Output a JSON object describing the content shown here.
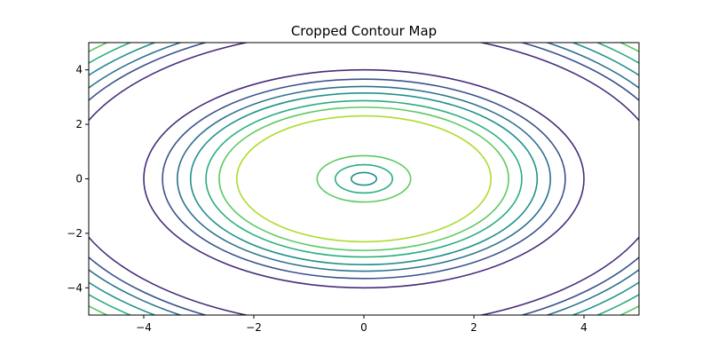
{
  "chart_data": {
    "type": "contour",
    "title": "Cropped Contour Map",
    "xlim": [
      -5,
      5
    ],
    "ylim": [
      -5,
      5
    ],
    "xticks": [
      {
        "value": -4,
        "label": "−4"
      },
      {
        "value": -2,
        "label": "−2"
      },
      0,
      2,
      4
    ],
    "yticks": [
      {
        "value": -4,
        "label": "−4"
      },
      {
        "value": -2,
        "label": "−2"
      },
      0,
      2,
      4
    ],
    "center": [
      0,
      0
    ],
    "contours": [
      {
        "radius": 0.23,
        "color": "#21918c"
      },
      {
        "radius": 0.52,
        "color": "#28ae80"
      },
      {
        "radius": 0.85,
        "color": "#5ec962"
      },
      {
        "radius": 2.31,
        "color": "#addc30"
      },
      {
        "radius": 2.63,
        "color": "#5ec962"
      },
      {
        "radius": 2.87,
        "color": "#28ae80"
      },
      {
        "radius": 3.15,
        "color": "#21918c"
      },
      {
        "radius": 3.39,
        "color": "#2c728e"
      },
      {
        "radius": 3.66,
        "color": "#3b528b"
      },
      {
        "radius": 4.0,
        "color": "#472d7b"
      },
      {
        "radius": 5.44,
        "color": "#472d7b"
      },
      {
        "radius": 5.77,
        "color": "#3b528b"
      },
      {
        "radius": 6.01,
        "color": "#2c728e"
      },
      {
        "radius": 6.28,
        "color": "#21918c"
      },
      {
        "radius": 6.56,
        "color": "#28ae80"
      },
      {
        "radius": 6.84,
        "color": "#5ec962"
      }
    ]
  }
}
